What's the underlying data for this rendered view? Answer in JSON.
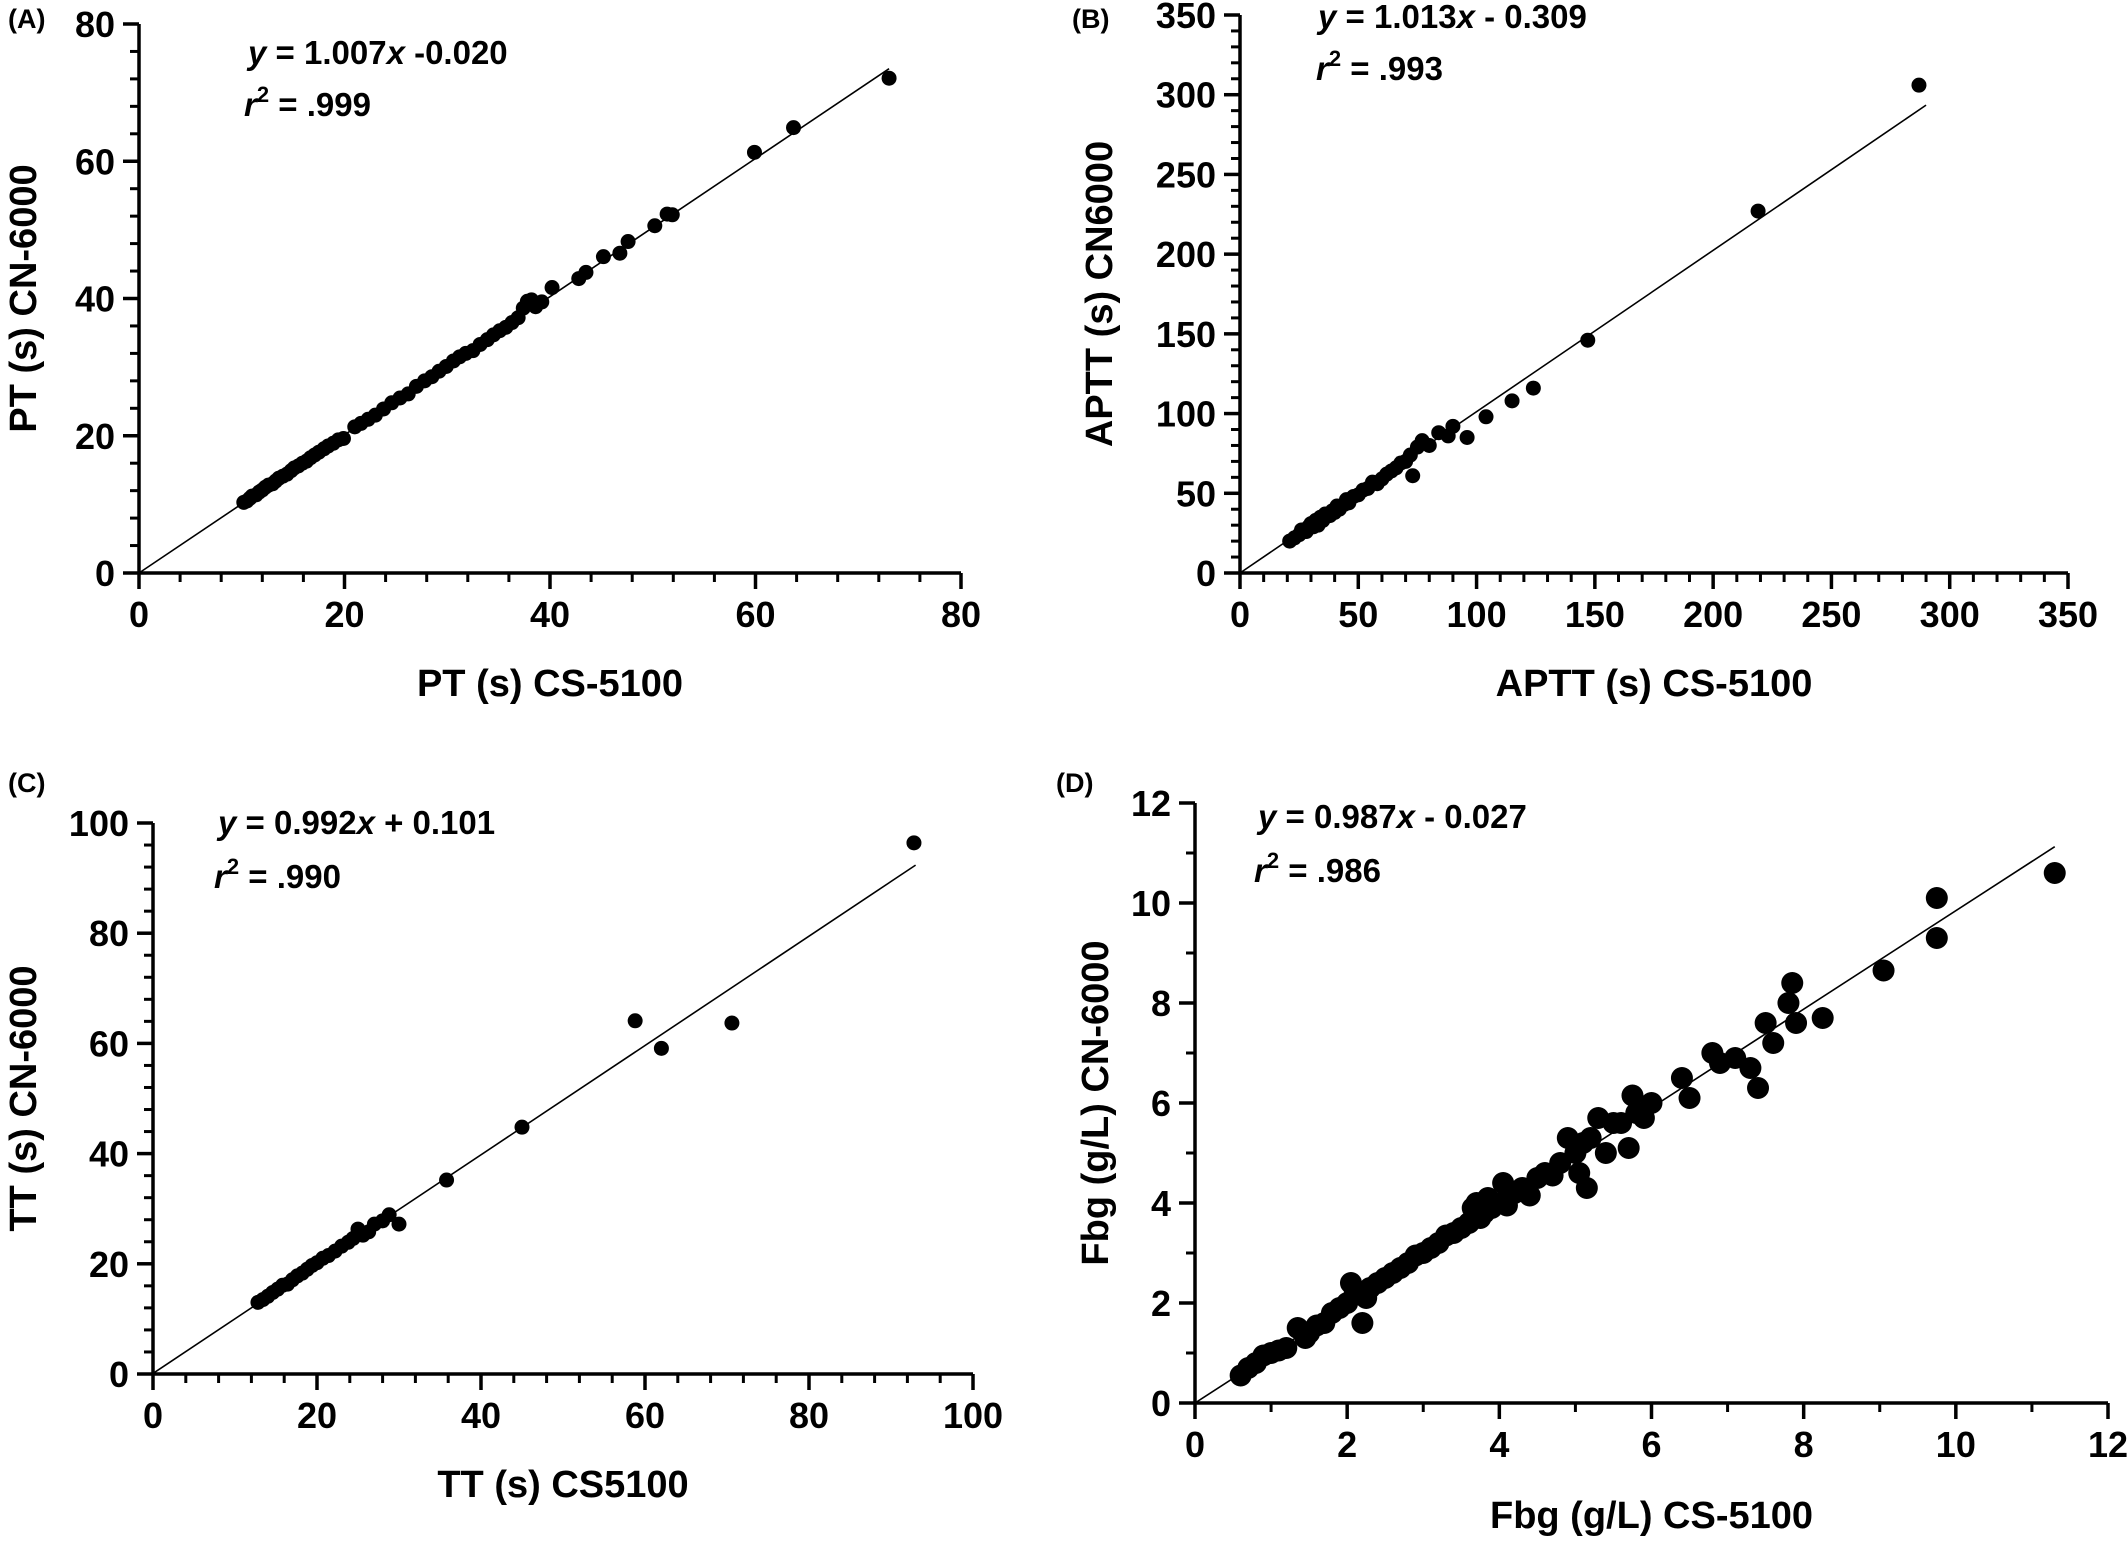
{
  "chart_data": [
    {
      "type": "scatter",
      "panel_label": "(A)",
      "xlabel": "PT (s) CS-5100",
      "ylabel": "PT (s) CN-6000",
      "xlim": [
        0,
        80
      ],
      "ylim": [
        0,
        80
      ],
      "xticks": [
        0,
        20,
        40,
        60,
        80
      ],
      "yticks": [
        0,
        20,
        40,
        60,
        80
      ],
      "minor_ticks_per_major": 4,
      "equation": {
        "y": "y",
        "mid": " = 1.007",
        "x": "x",
        "rest": " -0.020"
      },
      "r2": {
        "r": "r",
        "sup": "2",
        "rest": " =  .999"
      },
      "fit": {
        "slope": 1.007,
        "intercept": -0.02,
        "x_range": [
          0,
          73
        ]
      },
      "marker_size": "small",
      "points": [
        [
          10.2,
          10.3
        ],
        [
          10.5,
          10.5
        ],
        [
          10.8,
          10.9
        ],
        [
          11.0,
          11.2
        ],
        [
          11.4,
          11.4
        ],
        [
          11.7,
          11.8
        ],
        [
          12.0,
          12.1
        ],
        [
          12.3,
          12.5
        ],
        [
          12.6,
          12.8
        ],
        [
          13.0,
          13.0
        ],
        [
          13.3,
          13.4
        ],
        [
          13.6,
          13.8
        ],
        [
          14.0,
          14.1
        ],
        [
          14.4,
          14.4
        ],
        [
          14.8,
          14.9
        ],
        [
          15.1,
          15.3
        ],
        [
          15.5,
          15.6
        ],
        [
          15.9,
          16.0
        ],
        [
          16.3,
          16.3
        ],
        [
          16.7,
          16.8
        ],
        [
          17.1,
          17.2
        ],
        [
          17.5,
          17.6
        ],
        [
          18.0,
          18.1
        ],
        [
          18.4,
          18.5
        ],
        [
          18.9,
          18.9
        ],
        [
          19.4,
          19.4
        ],
        [
          19.9,
          19.6
        ],
        [
          21.0,
          21.3
        ],
        [
          21.6,
          21.8
        ],
        [
          22.3,
          22.4
        ],
        [
          23.0,
          23.0
        ],
        [
          23.8,
          23.9
        ],
        [
          24.6,
          24.8
        ],
        [
          25.4,
          25.5
        ],
        [
          26.2,
          26.1
        ],
        [
          27.0,
          27.2
        ],
        [
          27.8,
          28.0
        ],
        [
          28.5,
          28.6
        ],
        [
          29.2,
          29.4
        ],
        [
          29.9,
          30.1
        ],
        [
          30.6,
          30.9
        ],
        [
          31.2,
          31.5
        ],
        [
          31.8,
          32.0
        ],
        [
          32.5,
          32.4
        ],
        [
          33.2,
          33.3
        ],
        [
          33.9,
          34.0
        ],
        [
          34.5,
          34.7
        ],
        [
          35.1,
          35.3
        ],
        [
          35.7,
          35.8
        ],
        [
          36.3,
          36.5
        ],
        [
          36.9,
          37.2
        ],
        [
          37.4,
          38.6
        ],
        [
          37.8,
          39.6
        ],
        [
          38.2,
          39.8
        ],
        [
          38.6,
          38.8
        ],
        [
          39.2,
          39.5
        ],
        [
          40.2,
          41.6
        ],
        [
          42.8,
          42.9
        ],
        [
          43.5,
          43.8
        ],
        [
          45.2,
          46.1
        ],
        [
          46.8,
          46.6
        ],
        [
          47.6,
          48.3
        ],
        [
          50.2,
          50.6
        ],
        [
          51.4,
          52.3
        ],
        [
          51.9,
          52.2
        ],
        [
          59.9,
          61.3
        ],
        [
          63.7,
          64.9
        ],
        [
          73.0,
          72.1
        ]
      ]
    },
    {
      "type": "scatter",
      "panel_label": "(B)",
      "xlabel": "APTT (s) CS-5100",
      "ylabel": "APTT (s) CN6000",
      "xlim": [
        0,
        350
      ],
      "ylim": [
        0,
        350
      ],
      "xticks": [
        0,
        50,
        100,
        150,
        200,
        250,
        300,
        350
      ],
      "yticks": [
        0,
        50,
        100,
        150,
        200,
        250,
        300,
        350
      ],
      "minor_ticks_per_major": 4,
      "equation": {
        "y": "y",
        "mid": " = 1.013",
        "x": "x",
        "rest": " - 0.309"
      },
      "r2": {
        "r": "r",
        "sup": "2",
        "rest": " = .993"
      },
      "fit": {
        "slope": 1.013,
        "intercept": -0.309,
        "x_range": [
          0,
          290
        ]
      },
      "marker_size": "small",
      "points": [
        [
          21,
          20
        ],
        [
          23,
          22
        ],
        [
          25,
          24
        ],
        [
          26,
          27
        ],
        [
          28,
          26
        ],
        [
          29,
          29
        ],
        [
          30,
          31
        ],
        [
          31,
          29
        ],
        [
          32,
          33
        ],
        [
          33,
          30
        ],
        [
          34,
          35
        ],
        [
          35,
          33
        ],
        [
          36,
          37
        ],
        [
          38,
          36
        ],
        [
          39,
          39
        ],
        [
          40,
          38
        ],
        [
          41,
          42
        ],
        [
          42,
          40
        ],
        [
          44,
          43
        ],
        [
          45,
          46
        ],
        [
          46,
          44
        ],
        [
          48,
          48
        ],
        [
          50,
          49
        ],
        [
          52,
          52
        ],
        [
          54,
          53
        ],
        [
          56,
          57
        ],
        [
          58,
          56
        ],
        [
          60,
          59
        ],
        [
          62,
          62
        ],
        [
          64,
          64
        ],
        [
          66,
          66
        ],
        [
          68,
          69
        ],
        [
          70,
          70
        ],
        [
          72,
          74
        ],
        [
          73,
          61
        ],
        [
          75,
          79
        ],
        [
          77,
          83
        ],
        [
          80,
          80
        ],
        [
          84,
          88
        ],
        [
          88,
          86
        ],
        [
          90,
          92
        ],
        [
          96,
          85
        ],
        [
          104,
          98
        ],
        [
          115,
          108
        ],
        [
          124,
          116
        ],
        [
          147,
          146
        ],
        [
          219,
          227
        ],
        [
          287,
          306
        ]
      ]
    },
    {
      "type": "scatter",
      "panel_label": "(C)",
      "xlabel": "TT (s) CS5100",
      "ylabel": "TT (s) CN-6000",
      "xlim": [
        0,
        100
      ],
      "ylim": [
        0,
        100
      ],
      "xticks": [
        0,
        20,
        40,
        60,
        80,
        100
      ],
      "yticks": [
        0,
        20,
        40,
        60,
        80,
        100
      ],
      "minor_ticks_per_major": 4,
      "equation": {
        "y": "y",
        "mid": " = 0.992",
        "x": "x",
        "rest": " + 0.101"
      },
      "r2": {
        "r": "r",
        "sup": "2",
        "rest": " =  .990"
      },
      "fit": {
        "slope": 0.992,
        "intercept": 0.101,
        "x_range": [
          0,
          93
        ]
      },
      "marker_size": "small",
      "points": [
        [
          12.8,
          13.0
        ],
        [
          13.4,
          13.5
        ],
        [
          14.0,
          14.1
        ],
        [
          14.6,
          14.8
        ],
        [
          15.2,
          15.4
        ],
        [
          15.8,
          16.1
        ],
        [
          16.4,
          16.3
        ],
        [
          17.0,
          17.1
        ],
        [
          17.6,
          17.8
        ],
        [
          18.2,
          18.3
        ],
        [
          18.8,
          19.0
        ],
        [
          19.4,
          19.7
        ],
        [
          20.0,
          20.2
        ],
        [
          20.7,
          21.0
        ],
        [
          21.4,
          21.5
        ],
        [
          22.2,
          22.3
        ],
        [
          23.0,
          23.2
        ],
        [
          23.8,
          23.9
        ],
        [
          24.4,
          24.6
        ],
        [
          25.0,
          26.3
        ],
        [
          25.6,
          25.2
        ],
        [
          26.3,
          25.8
        ],
        [
          27.0,
          27.2
        ],
        [
          28.0,
          27.8
        ],
        [
          28.8,
          28.9
        ],
        [
          30.0,
          27.2
        ],
        [
          35.8,
          35.2
        ],
        [
          45.0,
          44.8
        ],
        [
          58.8,
          64.1
        ],
        [
          62.0,
          59.1
        ],
        [
          70.6,
          63.7
        ],
        [
          92.8,
          96.4
        ]
      ]
    },
    {
      "type": "scatter",
      "panel_label": "(D)",
      "xlabel": "Fbg (g/L) CS-5100",
      "ylabel": "Fbg (g/L) CN-6000",
      "xlim": [
        0,
        12
      ],
      "ylim": [
        0,
        12
      ],
      "xticks": [
        0,
        2,
        4,
        6,
        8,
        10,
        12
      ],
      "yticks": [
        0,
        2,
        4,
        6,
        8,
        10,
        12
      ],
      "minor_ticks_per_major": 1,
      "equation": {
        "y": "y",
        "mid": " = 0.987",
        "x": "x",
        "rest": " - 0.027"
      },
      "r2": {
        "r": "r",
        "sup": "2",
        "rest": " = .986"
      },
      "fit": {
        "slope": 0.987,
        "intercept": -0.027,
        "x_range": [
          0,
          11.3
        ]
      },
      "marker_size": "large",
      "points": [
        [
          0.6,
          0.55
        ],
        [
          0.7,
          0.7
        ],
        [
          0.8,
          0.8
        ],
        [
          0.9,
          0.95
        ],
        [
          1.0,
          1.0
        ],
        [
          1.1,
          1.05
        ],
        [
          1.2,
          1.1
        ],
        [
          1.35,
          1.5
        ],
        [
          1.45,
          1.3
        ],
        [
          1.5,
          1.4
        ],
        [
          1.6,
          1.55
        ],
        [
          1.7,
          1.6
        ],
        [
          1.8,
          1.8
        ],
        [
          1.9,
          1.9
        ],
        [
          2.0,
          2.0
        ],
        [
          2.05,
          2.4
        ],
        [
          2.1,
          2.2
        ],
        [
          2.2,
          1.6
        ],
        [
          2.25,
          2.1
        ],
        [
          2.3,
          2.3
        ],
        [
          2.4,
          2.4
        ],
        [
          2.5,
          2.5
        ],
        [
          2.6,
          2.6
        ],
        [
          2.7,
          2.7
        ],
        [
          2.8,
          2.8
        ],
        [
          2.9,
          2.95
        ],
        [
          3.0,
          3.0
        ],
        [
          3.1,
          3.1
        ],
        [
          3.2,
          3.2
        ],
        [
          3.3,
          3.35
        ],
        [
          3.4,
          3.4
        ],
        [
          3.5,
          3.5
        ],
        [
          3.6,
          3.6
        ],
        [
          3.65,
          3.9
        ],
        [
          3.7,
          4.0
        ],
        [
          3.75,
          3.7
        ],
        [
          3.8,
          3.8
        ],
        [
          3.85,
          4.1
        ],
        [
          3.9,
          3.9
        ],
        [
          4.0,
          4.0
        ],
        [
          4.05,
          4.4
        ],
        [
          4.1,
          3.95
        ],
        [
          4.2,
          4.2
        ],
        [
          4.3,
          4.3
        ],
        [
          4.4,
          4.15
        ],
        [
          4.5,
          4.5
        ],
        [
          4.6,
          4.6
        ],
        [
          4.7,
          4.55
        ],
        [
          4.8,
          4.8
        ],
        [
          4.9,
          5.3
        ],
        [
          5.0,
          5.0
        ],
        [
          5.05,
          4.6
        ],
        [
          5.1,
          5.2
        ],
        [
          5.15,
          4.3
        ],
        [
          5.2,
          5.3
        ],
        [
          5.3,
          5.7
        ],
        [
          5.4,
          5.0
        ],
        [
          5.5,
          5.6
        ],
        [
          5.6,
          5.6
        ],
        [
          5.7,
          5.1
        ],
        [
          5.75,
          6.15
        ],
        [
          5.8,
          5.8
        ],
        [
          5.9,
          5.7
        ],
        [
          6.0,
          6.0
        ],
        [
          6.4,
          6.5
        ],
        [
          6.5,
          6.1
        ],
        [
          6.8,
          7.0
        ],
        [
          6.9,
          6.8
        ],
        [
          7.1,
          6.9
        ],
        [
          7.3,
          6.7
        ],
        [
          7.4,
          6.3
        ],
        [
          7.5,
          7.6
        ],
        [
          7.6,
          7.2
        ],
        [
          7.8,
          8.0
        ],
        [
          7.85,
          8.4
        ],
        [
          7.9,
          7.6
        ],
        [
          8.25,
          7.7
        ],
        [
          9.05,
          8.65
        ],
        [
          9.75,
          10.1
        ],
        [
          9.75,
          9.3
        ],
        [
          11.3,
          10.6
        ]
      ]
    }
  ]
}
